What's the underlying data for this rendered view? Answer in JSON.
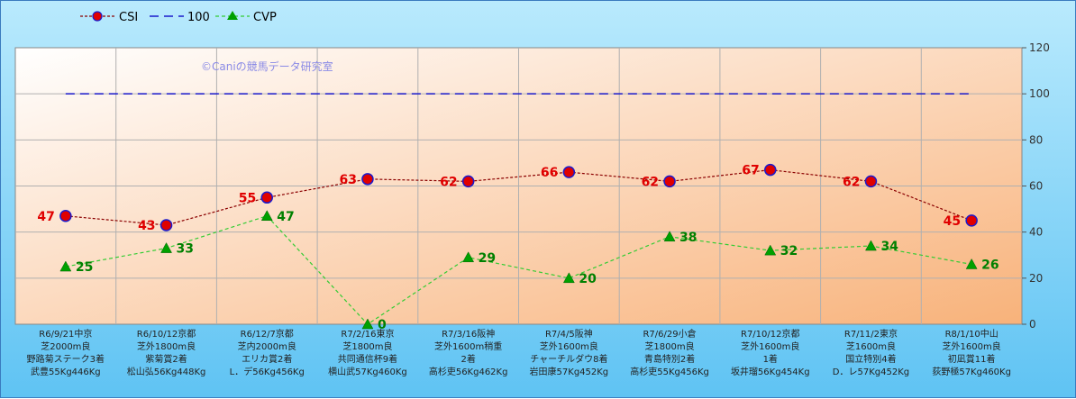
{
  "chart_data": {
    "type": "line",
    "watermark": "©Caniの競馬データ研究室",
    "legend": {
      "placement": "top-left",
      "entries": [
        "CSI",
        "100",
        "CVP"
      ]
    },
    "categories": [
      [
        "R6/9/21中京",
        "芝2000m良",
        "野路菊ステーク3着",
        "武豊55Kg446Kg"
      ],
      [
        "R6/10/12京都",
        "芝外1800m良",
        "紫菊賞2着",
        "松山弘56Kg448Kg"
      ],
      [
        "R6/12/7京都",
        "芝内2000m良",
        "エリカ賞2着",
        "L．デ56Kg456Kg"
      ],
      [
        "R7/2/16東京",
        "芝1800m良",
        "共同通信杯9着",
        "横山武57Kg460Kg"
      ],
      [
        "R7/3/16阪神",
        "芝外1600m稍重",
        "2着",
        "高杉吏56Kg462Kg"
      ],
      [
        "R7/4/5阪神",
        "芝外1600m良",
        "チャーチルダウ8着",
        "岩田康57Kg452Kg"
      ],
      [
        "R7/6/29小倉",
        "芝1800m良",
        "青島特別2着",
        "高杉吏55Kg456Kg"
      ],
      [
        "R7/10/12京都",
        "芝外1600m良",
        "1着",
        "坂井瑠56Kg454Kg"
      ],
      [
        "R7/11/2東京",
        "芝1600m良",
        "国立特別4着",
        "D．レ57Kg452Kg"
      ],
      [
        "R8/1/10中山",
        "芝外1600m良",
        "初凪賞11着",
        "荻野極57Kg460Kg"
      ]
    ],
    "series": [
      {
        "name": "CSI",
        "values": [
          47,
          43,
          55,
          63,
          62,
          66,
          62,
          67,
          62,
          45
        ],
        "color": "#8b0000",
        "marker": "#e00000"
      },
      {
        "name": "100",
        "values": [
          100,
          100,
          100,
          100,
          100,
          100,
          100,
          100,
          100,
          100
        ],
        "color": "#1a1acc"
      },
      {
        "name": "CVP",
        "values": [
          25,
          33,
          47,
          0,
          29,
          20,
          38,
          32,
          34,
          26
        ],
        "color": "#33cc33",
        "marker": "#00a000"
      }
    ],
    "ylim": [
      0,
      120
    ],
    "yticks": [
      0,
      20,
      40,
      60,
      80,
      100,
      120
    ],
    "grid": true
  }
}
